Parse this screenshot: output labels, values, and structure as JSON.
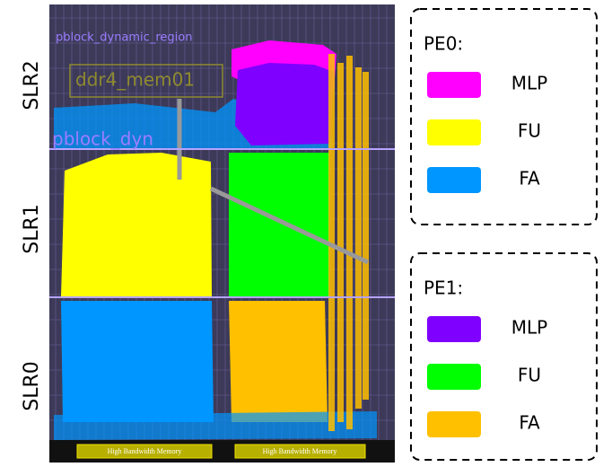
{
  "slr_labels": [
    "SLR2",
    "SLR1",
    "SLR0"
  ],
  "floorplan": {
    "region_labels": [
      "pblock_dynamic_region",
      "ddr4_mem01",
      "pblock_dyn"
    ],
    "hbm_labels": [
      "High Bandwidth Memory",
      "High Bandwidth Memory"
    ]
  },
  "legend": [
    {
      "title": "PE0:",
      "items": [
        {
          "label": "MLP",
          "color": "#ff00ff"
        },
        {
          "label": "FU",
          "color": "#ffff00"
        },
        {
          "label": "FA",
          "color": "#0096ff"
        }
      ]
    },
    {
      "title": "PE1:",
      "items": [
        {
          "label": "MLP",
          "color": "#8000ff"
        },
        {
          "label": "FU",
          "color": "#00ff00"
        },
        {
          "label": "FA",
          "color": "#ffc000"
        }
      ]
    }
  ]
}
